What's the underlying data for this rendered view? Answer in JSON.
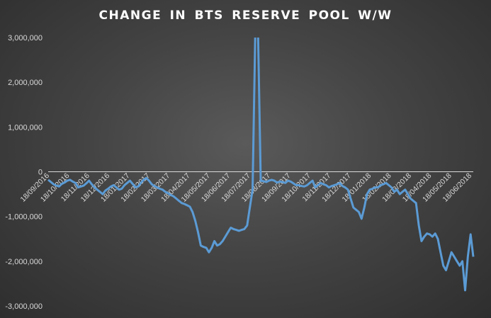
{
  "chart_data": {
    "type": "line",
    "title": "CHANGE IN BTS RESERVE POOL W/W",
    "xlabel": "",
    "ylabel": "",
    "ylim": [
      -3000000,
      3000000
    ],
    "yticks": [
      3000000,
      2000000,
      1000000,
      0,
      -1000000,
      -2000000,
      -3000000
    ],
    "ytick_labels": [
      "3,000,000",
      "2,000,000",
      "1,000,000",
      "0",
      "-1,000,000",
      "-2,000,000",
      "-3,000,000"
    ],
    "xtick_labels": [
      "18/09/2016",
      "18/10/2016",
      "18/11/2016",
      "18/12/2016",
      "18/01/2017",
      "18/02/2017",
      "18/03/2017",
      "18/04/2017",
      "18/05/2017",
      "18/06/2017",
      "18/07/2017",
      "18/08/2017",
      "18/09/2017",
      "18/10/2017",
      "18/11/2017",
      "18/12/2017",
      "18/01/2018",
      "18/02/2018",
      "18/03/2018",
      "18/04/2018",
      "18/05/2018",
      "18/06/2018"
    ],
    "x_start_label": "18/09/2016",
    "x_end_label": "18/06/2018",
    "grid": false,
    "line_color": "#5b9bd5",
    "series": [
      {
        "values": [
          -180000,
          -230000,
          -280000,
          -310000,
          -330000,
          -270000,
          -240000,
          -200000,
          -180000,
          -220000,
          -250000,
          -350000,
          -330000,
          -310000,
          -260000,
          -200000,
          -280000,
          -350000,
          -400000,
          -450000,
          -500000,
          -420000,
          -380000,
          -330000,
          -300000,
          -350000,
          -400000,
          -380000,
          -300000,
          -250000,
          -200000,
          -270000,
          -350000,
          -330000,
          -250000,
          -180000,
          -140000,
          -200000,
          -280000,
          -320000,
          -350000,
          -380000,
          -400000,
          -450000,
          -480000,
          -520000,
          -550000,
          -600000,
          -650000,
          -700000,
          -720000,
          -750000,
          -780000,
          -900000,
          -1100000,
          -1350000,
          -1650000,
          -1680000,
          -1700000,
          -1800000,
          -1700000,
          -1550000,
          -1650000,
          -1620000,
          -1550000,
          -1450000,
          -1350000,
          -1250000,
          -1280000,
          -1300000,
          -1320000,
          -1300000,
          -1280000,
          -1200000,
          -800000,
          -400000,
          3100000,
          3100000,
          -200000,
          -210000,
          -230000,
          -200000,
          -180000,
          -200000,
          -240000,
          -220000,
          -230000,
          -250000,
          -200000,
          -220000,
          -260000,
          -300000,
          -300000,
          -320000,
          -330000,
          -300000,
          -250000,
          -200000,
          -350000,
          -300000,
          -250000,
          -280000,
          -300000,
          -350000,
          -320000,
          -300000,
          -280000,
          -250000,
          -320000,
          -350000,
          -400000,
          -600000,
          -800000,
          -850000,
          -900000,
          -1050000,
          -800000,
          -500000,
          -400000,
          -380000,
          -350000,
          -350000,
          -300000,
          -280000,
          -250000,
          -300000,
          -350000,
          -450000,
          -400000,
          -500000,
          -450000,
          -400000,
          -500000,
          -600000,
          -650000,
          -700000,
          -1200000,
          -1550000,
          -1450000,
          -1380000,
          -1400000,
          -1450000,
          -1380000,
          -1500000,
          -1800000,
          -2100000,
          -2200000,
          -2000000,
          -1800000,
          -1900000,
          -2000000,
          -2100000,
          -2000000,
          -2650000,
          -1900000,
          -1400000,
          -1900000
        ]
      }
    ]
  }
}
